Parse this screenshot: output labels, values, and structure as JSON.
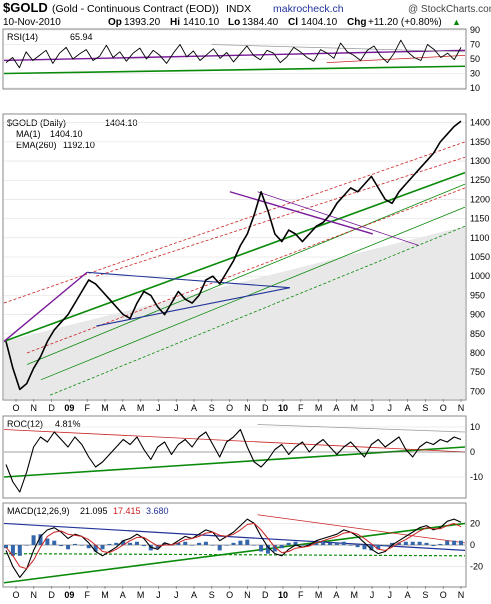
{
  "header": {
    "symbol_title": "$GOLD",
    "description": "(Gold - Continuous Contract (EOD))",
    "exchange": "INDX",
    "watermark": "makrocheck.ch",
    "brand": "@ StockCharts.com",
    "date": "10-Nov-2010",
    "open_label": "Op",
    "open_value": "1393.20",
    "high_label": "Hi",
    "high_value": "1410.10",
    "low_label": "Lo",
    "low_value": "1384.40",
    "close_label": "Cl",
    "close_value": "1404.10",
    "change_label": "Chg",
    "change_value": "+11.20 (+0.80%)",
    "change_arrow": "▲"
  },
  "colors": {
    "price": "#000000",
    "uptrend": "#0a8a0a",
    "purple": "#7a1a9a",
    "red_dashed": "#cc2222",
    "blue": "#223399",
    "gray": "#999999",
    "macd_hist": "#3366aa",
    "volume_shade": "#e8e8e8",
    "panel_border": "#888888",
    "grid": "#dddddd"
  },
  "chart_data": [
    {
      "type": "line",
      "panel": "rsi",
      "label": "RSI(14)",
      "last_value": "65.94",
      "y_ticks": [
        "90",
        "70",
        "50",
        "30",
        "10"
      ],
      "ylim": [
        10,
        90
      ],
      "series": [
        {
          "name": "RSI(14)",
          "values": [
            45,
            52,
            38,
            60,
            48,
            55,
            62,
            44,
            58,
            66,
            50,
            57,
            63,
            48,
            54,
            69,
            52,
            60,
            47,
            58,
            65,
            50,
            62,
            55,
            44,
            58,
            70,
            53,
            61,
            48,
            56,
            64,
            51,
            59,
            46,
            57,
            68,
            55,
            49,
            62,
            58,
            45,
            53,
            66,
            60,
            52,
            47,
            63,
            58,
            51,
            72,
            60,
            55,
            48,
            62,
            68,
            54,
            45,
            58,
            76,
            60,
            52,
            48,
            70,
            63,
            52,
            58,
            49,
            66
          ]
        }
      ]
    },
    {
      "type": "line",
      "panel": "price",
      "label": "$GOLD (Daily)",
      "last_value": "1404.10",
      "legend": [
        {
          "name": "MA(1)",
          "value": "1404.10"
        },
        {
          "name": "EMA(260)",
          "value": "1192.10"
        }
      ],
      "x_ticks": [
        "O",
        "N",
        "D",
        "09",
        "F",
        "M",
        "A",
        "M",
        "J",
        "J",
        "A",
        "S",
        "O",
        "N",
        "D",
        "10",
        "F",
        "M",
        "A",
        "M",
        "J",
        "J",
        "A",
        "S",
        "O",
        "N"
      ],
      "y_ticks": [
        "1400",
        "1350",
        "1300",
        "1250",
        "1200",
        "1150",
        "1100",
        "1050",
        "1000",
        "950",
        "900",
        "850",
        "800",
        "750",
        "700"
      ],
      "ylim": [
        680,
        1420
      ],
      "series": [
        {
          "name": "MA(1)",
          "values": [
            830,
            760,
            705,
            720,
            760,
            790,
            830,
            860,
            880,
            900,
            930,
            960,
            990,
            980,
            960,
            940,
            920,
            900,
            890,
            930,
            960,
            950,
            920,
            900,
            930,
            960,
            940,
            930,
            950,
            990,
            1000,
            980,
            1010,
            1040,
            1080,
            1110,
            1160,
            1220,
            1170,
            1110,
            1090,
            1120,
            1110,
            1090,
            1110,
            1130,
            1140,
            1160,
            1190,
            1210,
            1230,
            1220,
            1240,
            1260,
            1230,
            1200,
            1190,
            1220,
            1240,
            1260,
            1280,
            1300,
            1320,
            1350,
            1370,
            1390,
            1404
          ]
        }
      ]
    },
    {
      "type": "line",
      "panel": "roc",
      "label": "ROC(12)",
      "last_value": "4.81%",
      "y_ticks": [
        "10",
        "0",
        "-10"
      ],
      "ylim": [
        -18,
        14
      ],
      "series": [
        {
          "name": "ROC(12)",
          "values": [
            -5,
            -12,
            -16,
            -8,
            2,
            6,
            4,
            8,
            5,
            2,
            6,
            3,
            -2,
            -6,
            -4,
            -1,
            2,
            5,
            3,
            6,
            1,
            -3,
            2,
            4,
            -1,
            3,
            5,
            2,
            6,
            8,
            3,
            -2,
            4,
            6,
            9,
            2,
            -4,
            -6,
            -3,
            1,
            3,
            -1,
            2,
            4,
            0,
            3,
            5,
            2,
            -1,
            2,
            4,
            1,
            -2,
            3,
            5,
            2,
            4,
            6,
            1,
            -2,
            2,
            4,
            3,
            5,
            4,
            6,
            5
          ]
        }
      ]
    },
    {
      "type": "line",
      "panel": "macd",
      "label": "MACD(12,26,9)",
      "macd_value": "21.095",
      "signal_value": "17.415",
      "hist_value": "3.680",
      "x_ticks": [
        "O",
        "N",
        "D",
        "09",
        "F",
        "M",
        "A",
        "M",
        "J",
        "J",
        "A",
        "S",
        "O",
        "N",
        "D",
        "10",
        "F",
        "M",
        "A",
        "M",
        "J",
        "J",
        "A",
        "S",
        "O",
        "N"
      ],
      "y_ticks": [
        "20",
        "0",
        "-20"
      ],
      "ylim": [
        -38,
        38
      ],
      "series": [
        {
          "name": "MACD",
          "values": [
            -5,
            -20,
            -30,
            -22,
            -5,
            8,
            14,
            16,
            12,
            6,
            10,
            8,
            2,
            -6,
            -10,
            -6,
            -2,
            4,
            6,
            10,
            6,
            -2,
            -4,
            2,
            0,
            4,
            8,
            6,
            10,
            14,
            12,
            4,
            8,
            12,
            18,
            24,
            20,
            8,
            -2,
            -8,
            -10,
            -4,
            0,
            -2,
            0,
            4,
            6,
            8,
            10,
            14,
            12,
            8,
            2,
            -4,
            -8,
            -6,
            0,
            4,
            8,
            12,
            16,
            18,
            14,
            16,
            22,
            24,
            21
          ]
        },
        {
          "name": "Signal",
          "values": [
            -2,
            -10,
            -20,
            -22,
            -14,
            -2,
            8,
            12,
            13,
            10,
            9,
            8,
            5,
            0,
            -6,
            -7,
            -4,
            0,
            4,
            7,
            7,
            3,
            -1,
            0,
            0,
            2,
            5,
            6,
            8,
            11,
            12,
            9,
            8,
            10,
            14,
            19,
            20,
            14,
            6,
            -2,
            -7,
            -6,
            -3,
            -2,
            -1,
            2,
            4,
            6,
            8,
            11,
            12,
            10,
            6,
            1,
            -4,
            -5,
            -2,
            2,
            5,
            9,
            13,
            16,
            15,
            15,
            18,
            20,
            17
          ]
        }
      ]
    }
  ]
}
